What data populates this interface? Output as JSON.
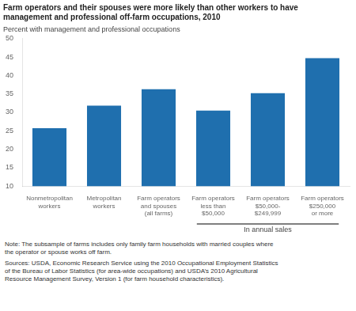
{
  "chart_data": {
    "type": "bar",
    "title": [
      "Farm operators and their spouses were more likely than other workers to have",
      "management and professional off-farm occupations, 2010"
    ],
    "ylabel": "Percent with management and professional occupations",
    "categories": [
      "Nonmetropolitan\nworkers",
      "Metropolitan\nworkers",
      "Farm operators\nand spouses\n(all farms)",
      "Farm operators\nless than\n$50,000",
      "Farm operators\n$50,000-\n$249,999",
      "Farm operators\n$250,000\nor more"
    ],
    "values": [
      25.7,
      31.8,
      36.3,
      30.5,
      35.2,
      44.7
    ],
    "color": "#1F6FAE",
    "ylim": [
      10,
      50
    ],
    "yticks": [
      10,
      15,
      20,
      25,
      30,
      35,
      40,
      45,
      50
    ],
    "grid": false,
    "annotations": [
      {
        "text": "In annual sales",
        "from": "Farm operators\nless than\n$50,000",
        "to": "Farm operators\n$250,000\nor more"
      }
    ],
    "notes": [
      "Note: The subsample of farms includes only family farm households with married couples where\nthe operator or spouse works off farm.",
      "Sources: USDA, Economic Research Service using the 2010 Occupational Employment Statistics\nof the Bureau of Labor Statistics (for area-wide occupations) and USDA’s 2010 Agricultural\nResource Management Survey, Version 1 (for farm household characteristics)."
    ]
  }
}
